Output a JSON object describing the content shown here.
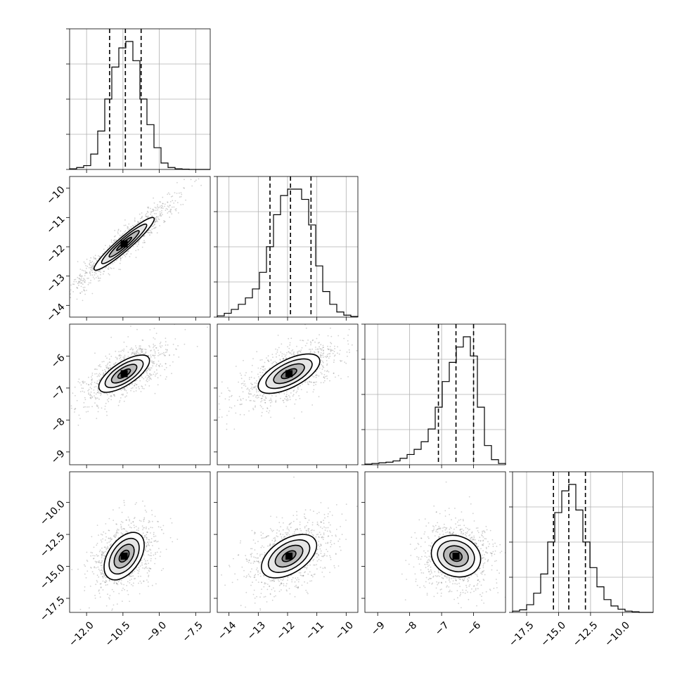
{
  "chart_data": {
    "type": "corner",
    "grid": true,
    "params": [
      {
        "range": [
          -12.7,
          -6.9
        ],
        "ticks": [
          -12.0,
          -10.5,
          -9.0,
          -7.5
        ],
        "tick_labels": [
          "−12.0",
          "−10.5",
          "−9.0",
          "−7.5"
        ],
        "quantiles": [
          -11.05,
          -10.4,
          -9.75
        ],
        "hist": {
          "edges": [
            -12.7,
            -12.41,
            -12.12,
            -11.83,
            -11.54,
            -11.25,
            -10.96,
            -10.67,
            -10.38,
            -10.09,
            -9.8,
            -9.51,
            -9.22,
            -8.93,
            -8.64,
            -8.35,
            -8.06,
            -7.77,
            -7.48,
            -7.19,
            -6.9
          ],
          "counts": [
            0.005,
            0.015,
            0.03,
            0.12,
            0.3,
            0.55,
            0.8,
            0.95,
            1.0,
            0.85,
            0.55,
            0.35,
            0.17,
            0.05,
            0.015,
            0.005,
            0.002,
            0,
            0,
            0
          ]
        }
      },
      {
        "range": [
          -14.4,
          -9.6
        ],
        "ticks": [
          -14,
          -13,
          -12,
          -11,
          -10
        ],
        "tick_labels": [
          "−14",
          "−13",
          "−12",
          "−11",
          "−10"
        ],
        "quantiles": [
          -12.6,
          -11.9,
          -11.2
        ],
        "hist": {
          "edges": [
            -14.4,
            -14.16,
            -13.92,
            -13.68,
            -13.44,
            -13.2,
            -12.96,
            -12.72,
            -12.48,
            -12.24,
            -12.0,
            -11.76,
            -11.52,
            -11.28,
            -11.04,
            -10.8,
            -10.56,
            -10.32,
            -10.08,
            -9.84,
            -9.6
          ],
          "counts": [
            0.01,
            0.03,
            0.06,
            0.1,
            0.15,
            0.22,
            0.35,
            0.55,
            0.8,
            0.95,
            1.0,
            1.0,
            0.92,
            0.72,
            0.4,
            0.2,
            0.1,
            0.04,
            0.015,
            0.005
          ]
        }
      },
      {
        "range": [
          -9.4,
          -5.0
        ],
        "ticks": [
          -9,
          -8,
          -7,
          -6
        ],
        "tick_labels": [
          "−9",
          "−8",
          "−7",
          "−6"
        ],
        "quantiles": [
          -7.1,
          -6.55,
          -6.0
        ],
        "hist": {
          "edges": [
            -9.4,
            -9.18,
            -8.96,
            -8.74,
            -8.52,
            -8.3,
            -8.08,
            -7.86,
            -7.64,
            -7.42,
            -7.2,
            -6.98,
            -6.76,
            -6.54,
            -6.32,
            -6.1,
            -5.88,
            -5.66,
            -5.44,
            -5.22,
            -5.0
          ],
          "counts": [
            0.005,
            0.01,
            0.015,
            0.02,
            0.03,
            0.05,
            0.08,
            0.12,
            0.18,
            0.28,
            0.45,
            0.65,
            0.8,
            0.92,
            1.0,
            0.85,
            0.45,
            0.15,
            0.04,
            0.01
          ]
        }
      },
      {
        "range": [
          -18.6,
          -7.6
        ],
        "ticks": [
          -17.5,
          -15.0,
          -12.5,
          -10.0
        ],
        "tick_labels": [
          "−17.5",
          "−15.0",
          "−12.5",
          "−10.0"
        ],
        "quantiles": [
          -15.4,
          -14.2,
          -12.9
        ],
        "hist": {
          "edges": [
            -18.6,
            -18.05,
            -17.5,
            -16.95,
            -16.4,
            -15.85,
            -15.3,
            -14.75,
            -14.2,
            -13.65,
            -13.1,
            -12.55,
            -12.0,
            -11.45,
            -10.9,
            -10.35,
            -9.8,
            -9.25,
            -8.7,
            -8.15,
            -7.6
          ],
          "counts": [
            0.01,
            0.02,
            0.06,
            0.15,
            0.3,
            0.55,
            0.78,
            0.95,
            1.0,
            0.8,
            0.55,
            0.35,
            0.2,
            0.1,
            0.05,
            0.025,
            0.01,
            0.005,
            0,
            0
          ]
        }
      }
    ],
    "pairs": [
      {
        "row": 1,
        "col": 0,
        "center": [
          -10.45,
          -11.9
        ],
        "semi_axes": [
          1.55,
          0.12
        ],
        "angle_deg": 41,
        "scatter_spread": [
          0.95,
          0.15
        ]
      },
      {
        "row": 2,
        "col": 0,
        "center": [
          -10.45,
          -6.55
        ],
        "semi_axes": [
          1.15,
          0.45
        ],
        "angle_deg": 33,
        "scatter_spread": [
          0.9,
          0.55
        ]
      },
      {
        "row": 2,
        "col": 1,
        "center": [
          -11.95,
          -6.55
        ],
        "semi_axes": [
          1.1,
          0.45
        ],
        "angle_deg": 27,
        "scatter_spread": [
          0.9,
          0.6
        ]
      },
      {
        "row": 3,
        "col": 0,
        "center": [
          -10.45,
          -14.2
        ],
        "semi_axes": [
          1.05,
          0.62
        ],
        "angle_deg": 55,
        "scatter_spread": [
          0.85,
          0.7
        ]
      },
      {
        "row": 3,
        "col": 1,
        "center": [
          -11.95,
          -14.2
        ],
        "semi_axes": [
          1.0,
          0.55
        ],
        "angle_deg": 32,
        "scatter_spread": [
          0.85,
          0.7
        ]
      },
      {
        "row": 3,
        "col": 2,
        "center": [
          -6.55,
          -14.2
        ],
        "semi_axes": [
          0.75,
          0.6
        ],
        "angle_deg": -20,
        "scatter_spread": [
          0.8,
          0.75
        ]
      }
    ],
    "contour_levels": [
      0.5,
      1.0,
      1.5,
      2.0
    ]
  }
}
